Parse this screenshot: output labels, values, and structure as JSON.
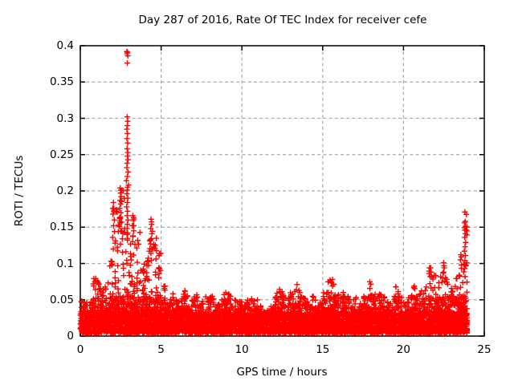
{
  "chart_data": {
    "type": "scatter",
    "title": "Day 287 of 2016, Rate Of TEC Index for receiver cefe",
    "xlabel": "GPS time / hours",
    "ylabel": "ROTI / TECUs",
    "xlim": [
      0,
      25
    ],
    "ylim": [
      0,
      0.4
    ],
    "xtick_values": [
      0,
      5,
      10,
      15,
      20,
      25
    ],
    "xtick_labels": [
      "0",
      "5",
      "10",
      "15",
      "20",
      "25"
    ],
    "ytick_values": [
      0,
      0.05,
      0.1,
      0.15,
      0.2,
      0.25,
      0.3,
      0.35,
      0.4
    ],
    "ytick_labels": [
      "0",
      "0.05",
      "0.1",
      "0.15",
      "0.2",
      "0.25",
      "0.3",
      "0.35",
      "0.4"
    ],
    "grid": true,
    "legend": "none",
    "marker": "plus",
    "point_color": "#ff0000",
    "grid_color": "#a9a9a9",
    "border_color": "#000000",
    "background": "#ffffff",
    "data_start_hour": 0.0,
    "data_end_hour": 23.93,
    "bin_hours": 0.25,
    "base_band": {
      "y_min": 0.004,
      "y_dense_max": 0.032,
      "note": "dense noise floor of ~6000 ROTI samples across the whole day"
    },
    "envelope_max": [
      0.052,
      0.046,
      0.048,
      0.08,
      0.078,
      0.064,
      0.075,
      0.11,
      0.185,
      0.172,
      0.205,
      0.15,
      0.13,
      0.165,
      0.145,
      0.105,
      0.112,
      0.16,
      0.135,
      0.12,
      0.07,
      0.052,
      0.06,
      0.05,
      0.055,
      0.065,
      0.058,
      0.05,
      0.057,
      0.047,
      0.05,
      0.056,
      0.056,
      0.05,
      0.046,
      0.058,
      0.064,
      0.055,
      0.056,
      0.052,
      0.046,
      0.05,
      0.056,
      0.05,
      0.042,
      0.034,
      0.036,
      0.042,
      0.062,
      0.066,
      0.06,
      0.055,
      0.06,
      0.072,
      0.065,
      0.056,
      0.05,
      0.056,
      0.05,
      0.046,
      0.06,
      0.082,
      0.078,
      0.06,
      0.055,
      0.06,
      0.056,
      0.05,
      0.056,
      0.05,
      0.058,
      0.075,
      0.06,
      0.055,
      0.06,
      0.056,
      0.05,
      0.056,
      0.068,
      0.055,
      0.05,
      0.056,
      0.072,
      0.056,
      0.065,
      0.072,
      0.094,
      0.086,
      0.076,
      0.1,
      0.082,
      0.066,
      0.07,
      0.086,
      0.11,
      0.17
    ],
    "outliers": [
      [
        2.88,
        0.392
      ],
      [
        2.92,
        0.391
      ],
      [
        2.9,
        0.389
      ],
      [
        2.94,
        0.386
      ],
      [
        2.91,
        0.376
      ],
      [
        2.9,
        0.302
      ],
      [
        2.93,
        0.296
      ],
      [
        2.91,
        0.29
      ],
      [
        2.88,
        0.285
      ],
      [
        2.92,
        0.279
      ],
      [
        2.89,
        0.272
      ],
      [
        2.93,
        0.266
      ],
      [
        2.9,
        0.258
      ],
      [
        2.94,
        0.253
      ],
      [
        2.92,
        0.248
      ],
      [
        2.95,
        0.243
      ],
      [
        2.9,
        0.238
      ],
      [
        2.88,
        0.232
      ],
      [
        2.96,
        0.226
      ],
      [
        2.91,
        0.22
      ],
      [
        2.85,
        0.214
      ],
      [
        2.98,
        0.208
      ],
      [
        2.93,
        0.205
      ],
      [
        2.9,
        0.201
      ],
      [
        2.88,
        0.196
      ],
      [
        2.94,
        0.19
      ],
      [
        2.91,
        0.184
      ],
      [
        2.87,
        0.178
      ],
      [
        2.92,
        0.172
      ],
      [
        2.9,
        0.166
      ],
      [
        2.95,
        0.16
      ],
      [
        2.91,
        0.154
      ],
      [
        2.89,
        0.148
      ],
      [
        2.93,
        0.142
      ],
      [
        2.47,
        0.204
      ],
      [
        2.51,
        0.201
      ],
      [
        2.49,
        0.197
      ],
      [
        2.53,
        0.192
      ],
      [
        2.46,
        0.187
      ],
      [
        2.5,
        0.182
      ],
      [
        2.44,
        0.176
      ],
      [
        2.52,
        0.17
      ],
      [
        2.48,
        0.164
      ],
      [
        2.55,
        0.157
      ],
      [
        2.42,
        0.151
      ],
      [
        2.5,
        0.145
      ],
      [
        2.05,
        0.184
      ],
      [
        2.08,
        0.176
      ],
      [
        2.02,
        0.168
      ],
      [
        2.1,
        0.16
      ],
      [
        2.06,
        0.152
      ],
      [
        2.12,
        0.144
      ],
      [
        2.0,
        0.136
      ],
      [
        2.15,
        0.128
      ],
      [
        2.04,
        0.12
      ],
      [
        3.25,
        0.166
      ],
      [
        3.28,
        0.159
      ],
      [
        3.22,
        0.152
      ],
      [
        3.3,
        0.145
      ],
      [
        3.26,
        0.138
      ],
      [
        3.24,
        0.13
      ],
      [
        4.38,
        0.161
      ],
      [
        4.41,
        0.154
      ],
      [
        4.36,
        0.148
      ],
      [
        4.43,
        0.141
      ],
      [
        4.39,
        0.134
      ],
      [
        4.35,
        0.127
      ],
      [
        4.42,
        0.12
      ],
      [
        4.37,
        0.114
      ],
      [
        23.8,
        0.171
      ],
      [
        23.82,
        0.158
      ],
      [
        23.78,
        0.156
      ],
      [
        23.84,
        0.151
      ],
      [
        23.8,
        0.146
      ],
      [
        23.83,
        0.141
      ],
      [
        23.79,
        0.136
      ],
      [
        23.85,
        0.129
      ],
      [
        23.81,
        0.123
      ],
      [
        23.77,
        0.117
      ],
      [
        23.83,
        0.111
      ],
      [
        23.8,
        0.104
      ],
      [
        23.86,
        0.098
      ],
      [
        23.78,
        0.093
      ],
      [
        21.68,
        0.094
      ],
      [
        21.72,
        0.088
      ],
      [
        21.65,
        0.082
      ],
      [
        22.48,
        0.101
      ],
      [
        22.52,
        0.094
      ],
      [
        22.45,
        0.087
      ],
      [
        23.55,
        0.112
      ],
      [
        23.52,
        0.105
      ],
      [
        23.58,
        0.098
      ]
    ]
  }
}
